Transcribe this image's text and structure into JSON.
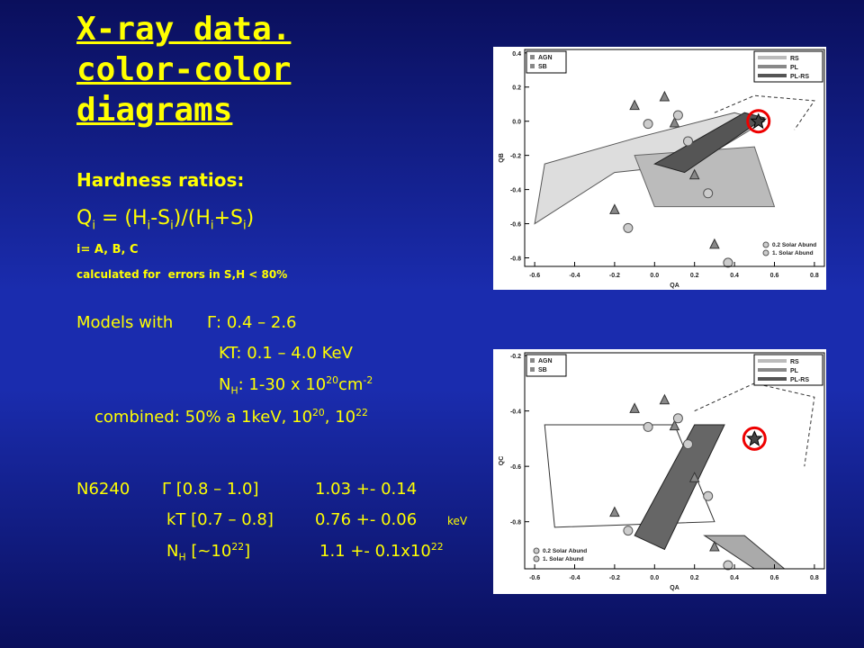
{
  "title": [
    "X-ray data.",
    "color-color",
    "diagrams"
  ],
  "heading": "Hardness ratios:",
  "formula": [
    "Q",
    "i",
    " = (H",
    "i",
    "-S",
    "i",
    ")/(H",
    "i",
    "+S",
    "i",
    ")"
  ],
  "index_note": "i= A, B, C",
  "error_note": "calculated for  errors in S,H < 80%",
  "models": {
    "intro": "Models with",
    "gamma": "Γ: 0.4 – 2.6",
    "kt": "KT: 0.1 – 4.0 KeV",
    "nh": [
      "N",
      "H",
      ": 1-30 x 10",
      "20",
      "cm",
      "-2"
    ],
    "combined": [
      "combined: 50% a 1keV, 10",
      "20",
      ", 10",
      "22"
    ]
  },
  "result": {
    "source": "N6240",
    "gamma_range": "Γ [0.8 – 1.0]",
    "gamma_value": "1.03 +- 0.14",
    "kt_range": "kT [0.7 – 0.8]",
    "kt_value": "0.76 +- 0.06",
    "kt_unit": "keV",
    "nh_range": [
      "N",
      "H",
      " [~10",
      "22",
      "]"
    ],
    "nh_value": [
      "1.1 +- 0.1x10",
      "22"
    ]
  },
  "plots": [
    {
      "xlabel": "QA",
      "ylabel": "QB",
      "xlim": [
        -0.65,
        0.85
      ],
      "ylim": [
        -0.85,
        0.42
      ],
      "xticks": [
        -0.6,
        -0.4,
        -0.2,
        {
          "value": 0,
          "label": "0.0"
        },
        0.2,
        0.4,
        0.6,
        0.8
      ],
      "yticks": [
        0.4,
        0.2,
        {
          "value": 0,
          "label": "0.0"
        },
        -0.2,
        -0.4,
        -0.6,
        -0.8
      ],
      "legend_points": [
        "AGN",
        "SB"
      ],
      "legend_models": [
        "RS",
        "PL",
        "PL-RS"
      ],
      "annotations": [
        "0.2 Solar Abund",
        "1. Solar Abund"
      ]
    },
    {
      "xlabel": "QA",
      "ylabel": "QC",
      "xlim": [
        -0.65,
        0.85
      ],
      "ylim": [
        -0.97,
        -0.19
      ],
      "xticks": [
        -0.6,
        -0.4,
        -0.2,
        {
          "value": 0,
          "label": "0.0"
        },
        0.2,
        0.4,
        0.6,
        0.8
      ],
      "yticks": [
        -0.2,
        -0.4,
        -0.6,
        -0.8
      ],
      "legend_points": [
        "AGN",
        "SB"
      ],
      "legend_models": [
        "RS",
        "PL",
        "PL-RS"
      ],
      "annotations": [
        "0.2 Solar Abund",
        "1. Solar Abund"
      ]
    }
  ]
}
